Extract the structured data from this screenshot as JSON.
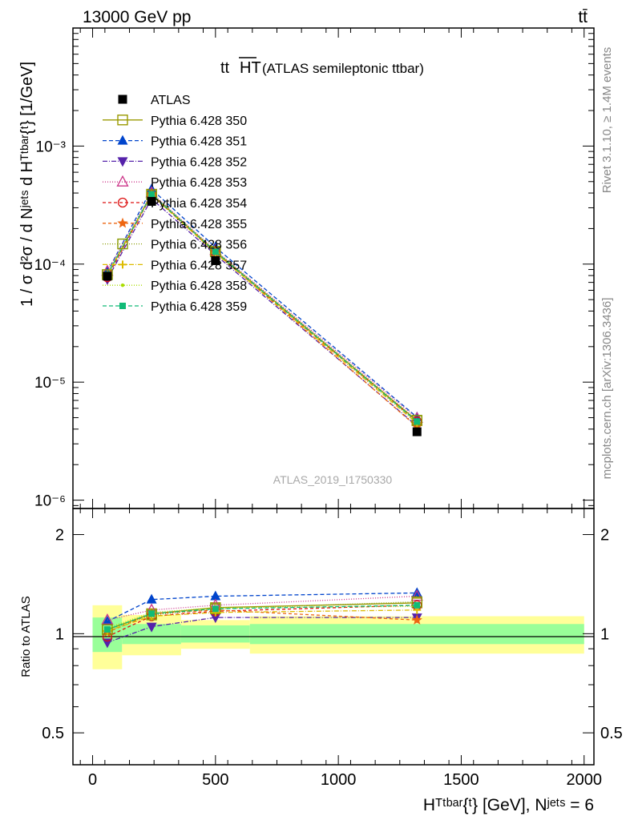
{
  "header": {
    "left": "13000 GeV pp",
    "right": "tt̄"
  },
  "plot_title": {
    "main": "tt",
    "overline": "HT",
    "sub": "(ATLAS semileptonic ttbar)"
  },
  "side_labels": {
    "rivet": "Rivet 3.1.10, ≥ 1.4M events",
    "mcplots": "mcplots.cern.ch [arXiv:1306.3436]"
  },
  "watermark": "ATLAS_2019_I1750330",
  "axes": {
    "ylabel_main": "1 / σ d²σ / d Nʲᵉᵗˢ d Hᵀᵗᵇᵃʳ{ᵗ} [1/GeV]",
    "ylabel_ratio": "Ratio to ATLAS",
    "xlabel": "Hᵀᵗᵇᵃʳ{ᵗ} [GeV], Nʲᵉᵗˢ = 6"
  },
  "colors": {
    "data": "#000000",
    "band_inner": "#99ff99",
    "band_outer": "#ffff99"
  },
  "chart_data": {
    "type": "line",
    "log_y": true,
    "grid": false,
    "legend_position": "top-left",
    "xlim": [
      -80,
      2040
    ],
    "ylim": [
      8.5e-07,
      0.01
    ],
    "ratio_ylim": [
      0.4,
      2.4
    ],
    "x_ticks": [
      0,
      500,
      1000,
      1500,
      2000
    ],
    "x_tick_labels": [
      "0",
      "500",
      "1000",
      "1500",
      "2000"
    ],
    "y_ticks": [
      1e-06,
      1e-05,
      0.0001,
      0.001
    ],
    "y_tick_labels": [
      "10⁻⁶",
      "10⁻⁵",
      "10⁻⁴",
      "10⁻³"
    ],
    "ratio_ticks": [
      0.5,
      1,
      2
    ],
    "ratio_tick_labels": [
      "0.5",
      "1",
      "2"
    ],
    "x": [
      60,
      240,
      500,
      1320
    ],
    "bins": [
      [
        0,
        120
      ],
      [
        120,
        360
      ],
      [
        360,
        640
      ],
      [
        640,
        2000
      ]
    ],
    "data": {
      "name": "ATLAS",
      "values": [
        7.9e-05,
        0.00034,
        0.000107,
        3.8e-06
      ],
      "band_inner": [
        0.12,
        0.07,
        0.06,
        0.07
      ],
      "band_outer": [
        0.22,
        0.14,
        0.1,
        0.13
      ]
    },
    "series": [
      {
        "name": "Pythia 6.428 350",
        "color": "#999900",
        "dash": "",
        "marker": "square-open",
        "ratio": [
          1.03,
          1.15,
          1.2,
          1.24
        ]
      },
      {
        "name": "Pythia 6.428 351",
        "color": "#0044cc",
        "dash": "5,3",
        "marker": "triangle-up",
        "ratio": [
          1.09,
          1.27,
          1.3,
          1.33
        ]
      },
      {
        "name": "Pythia 6.428 352",
        "color": "#5522aa",
        "dash": "6,2,1,2",
        "marker": "triangle-down",
        "ratio": [
          0.94,
          1.05,
          1.12,
          1.12
        ]
      },
      {
        "name": "Pythia 6.428 353",
        "color": "#cc3388",
        "dash": "1,2",
        "marker": "triangle-open",
        "ratio": [
          1.1,
          1.18,
          1.22,
          1.3
        ]
      },
      {
        "name": "Pythia 6.428 354",
        "color": "#dd1111",
        "dash": "4,3",
        "marker": "circle-open",
        "ratio": [
          0.98,
          1.13,
          1.17,
          1.22
        ]
      },
      {
        "name": "Pythia 6.428 355",
        "color": "#ee6611",
        "dash": "4,3",
        "marker": "star",
        "ratio": [
          1.01,
          1.15,
          1.18,
          1.1
        ]
      },
      {
        "name": "Pythia 6.428 356",
        "color": "#889900",
        "dash": "1,2",
        "marker": "square-open",
        "ratio": [
          1.03,
          1.14,
          1.19,
          1.25
        ]
      },
      {
        "name": "Pythia 6.428 357",
        "color": "#ddbb00",
        "dash": "6,2,1,2",
        "marker": "cross",
        "ratio": [
          1.02,
          1.13,
          1.16,
          1.18
        ]
      },
      {
        "name": "Pythia 6.428 358",
        "color": "#aadd00",
        "dash": "1,2",
        "marker": "dot",
        "ratio": [
          1.04,
          1.16,
          1.2,
          1.21
        ]
      },
      {
        "name": "Pythia 6.428 359",
        "color": "#11bb77",
        "dash": "5,3",
        "marker": "square",
        "ratio": [
          1.03,
          1.15,
          1.19,
          1.22
        ]
      }
    ]
  }
}
